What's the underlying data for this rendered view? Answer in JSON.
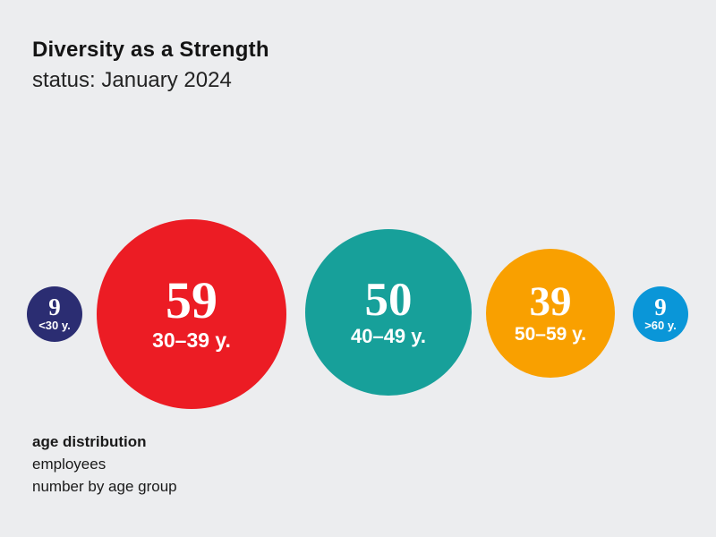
{
  "header": {
    "title": "Diversity as a Strength",
    "subtitle": "status: January 2024"
  },
  "footer": {
    "heading": "age distribution",
    "lines": [
      "employees",
      "number by age group"
    ]
  },
  "colors": {
    "background": "#ECEDEF",
    "text": "#1A1A1A",
    "bubble_text": "#FFFFFF"
  },
  "bubbles": [
    {
      "value": "9",
      "label": "<30 y.",
      "color": "#2B2D72"
    },
    {
      "value": "59",
      "label": "30–39 y.",
      "color": "#EC1C24"
    },
    {
      "value": "50",
      "label": "40–49 y.",
      "color": "#17A09A"
    },
    {
      "value": "39",
      "label": "50–59 y.",
      "color": "#F9A000"
    },
    {
      "value": "9",
      "label": ">60 y.",
      "color": "#0A96D8"
    }
  ],
  "chart_data": {
    "type": "bubble",
    "title": "Diversity as a Strength",
    "subtitle": "status: January 2024",
    "categories": [
      "<30 y.",
      "30–39 y.",
      "40–49 y.",
      "50–59 y.",
      ">60 y."
    ],
    "values": [
      9,
      59,
      50,
      39,
      9
    ],
    "value_unit": "employees",
    "caption_heading": "age distribution",
    "caption_lines": [
      "employees",
      "number by age group"
    ],
    "colors": [
      "#2B2D72",
      "#EC1C24",
      "#17A09A",
      "#F9A000",
      "#0A96D8"
    ],
    "legend_position": "none",
    "grid": false,
    "layout": "single horizontal row of circles, circle size proportional to value, labels inside circles"
  }
}
